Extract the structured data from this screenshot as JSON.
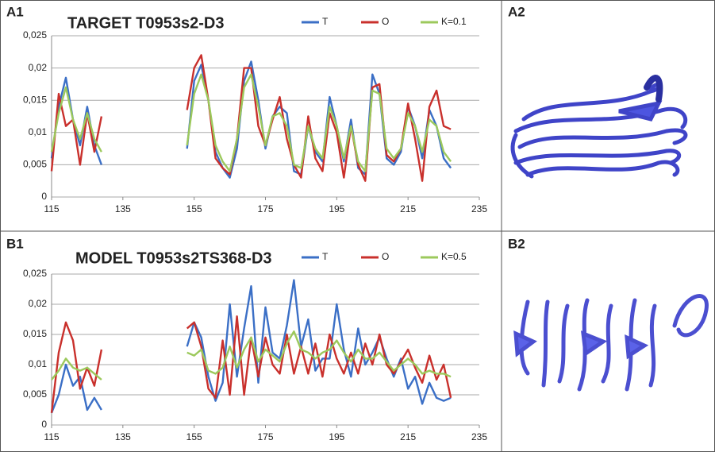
{
  "panels": [
    "A1",
    "A2",
    "B1",
    "B2"
  ],
  "chart_data": [
    {
      "type": "line",
      "title": "TARGET T0953s2-D3",
      "x": [
        115,
        117,
        119,
        121,
        123,
        125,
        127,
        129,
        140,
        153,
        155,
        157,
        159,
        161,
        163,
        165,
        167,
        169,
        171,
        173,
        175,
        177,
        179,
        181,
        183,
        185,
        187,
        189,
        191,
        193,
        195,
        197,
        199,
        201,
        203,
        205,
        207,
        209,
        211,
        213,
        215,
        217,
        219,
        221,
        223,
        225,
        227
      ],
      "series": [
        {
          "name": "T",
          "color": "#3b6fc6",
          "values": [
            0.006,
            0.014,
            0.0185,
            0.012,
            0.008,
            0.014,
            0.008,
            0.005,
            null,
            0.0075,
            0.018,
            0.0205,
            0.015,
            0.007,
            0.0045,
            0.003,
            0.0075,
            0.018,
            0.021,
            0.015,
            0.0075,
            0.0125,
            0.014,
            0.013,
            0.004,
            0.0035,
            0.011,
            0.007,
            0.0055,
            0.0155,
            0.011,
            0.0055,
            0.012,
            0.0045,
            0.0035,
            0.019,
            0.016,
            0.006,
            0.005,
            0.007,
            0.014,
            0.011,
            0.006,
            0.0135,
            0.011,
            0.006,
            0.0045
          ]
        },
        {
          "name": "O",
          "color": "#c9302c",
          "values": [
            0.004,
            0.016,
            0.011,
            0.012,
            0.005,
            0.013,
            0.007,
            0.0125,
            null,
            0.0135,
            0.02,
            0.022,
            0.015,
            0.006,
            0.0045,
            0.0035,
            0.009,
            0.02,
            0.02,
            0.011,
            0.008,
            0.012,
            0.0155,
            0.009,
            0.005,
            0.003,
            0.0125,
            0.006,
            0.004,
            0.013,
            0.01,
            0.003,
            0.011,
            0.005,
            0.0025,
            0.017,
            0.0175,
            0.0065,
            0.0055,
            0.0075,
            0.0145,
            0.009,
            0.0025,
            0.014,
            0.0165,
            0.011,
            0.0105
          ]
        },
        {
          "name": "K=0.1",
          "color": "#9cc95c",
          "values": [
            0.007,
            0.013,
            0.017,
            0.012,
            0.009,
            0.013,
            0.009,
            0.007,
            null,
            0.008,
            0.016,
            0.019,
            0.015,
            0.008,
            0.0055,
            0.004,
            0.009,
            0.017,
            0.019,
            0.014,
            0.008,
            0.0125,
            0.013,
            0.011,
            0.005,
            0.0045,
            0.011,
            0.0075,
            0.006,
            0.014,
            0.011,
            0.006,
            0.011,
            0.0055,
            0.004,
            0.0165,
            0.016,
            0.0075,
            0.006,
            0.0075,
            0.013,
            0.011,
            0.007,
            0.012,
            0.011,
            0.007,
            0.0055
          ]
        }
      ],
      "xlim": [
        115,
        235
      ],
      "xticks": [
        115,
        135,
        155,
        175,
        195,
        215,
        235
      ],
      "ylim": [
        0,
        0.025
      ],
      "yticks": [
        0,
        {
          "value": 0.005,
          "label": "0,005"
        },
        {
          "value": 0.01,
          "label": "0,01"
        },
        {
          "value": 0.015,
          "label": "0,015"
        },
        {
          "value": 0.02,
          "label": "0,02"
        },
        {
          "value": 0.025,
          "label": "0,025"
        }
      ],
      "grid": true
    },
    {
      "type": "line",
      "title": "MODEL T0953s2TS368-D3",
      "x": [
        115,
        117,
        119,
        121,
        123,
        125,
        127,
        129,
        140,
        153,
        155,
        157,
        159,
        161,
        163,
        165,
        167,
        169,
        171,
        173,
        175,
        177,
        179,
        181,
        183,
        185,
        187,
        189,
        191,
        193,
        195,
        197,
        199,
        201,
        203,
        205,
        207,
        209,
        211,
        213,
        215,
        217,
        219,
        221,
        223,
        225,
        227
      ],
      "series": [
        {
          "name": "T",
          "color": "#3b6fc6",
          "values": [
            0.002,
            0.005,
            0.01,
            0.0065,
            0.008,
            0.0025,
            0.0045,
            0.0025,
            null,
            0.013,
            0.017,
            0.0145,
            0.008,
            0.004,
            0.007,
            0.02,
            0.008,
            0.016,
            0.023,
            0.007,
            0.0195,
            0.012,
            0.011,
            0.0165,
            0.024,
            0.013,
            0.0175,
            0.009,
            0.011,
            0.011,
            0.02,
            0.0125,
            0.008,
            0.016,
            0.01,
            0.012,
            0.0145,
            0.011,
            0.008,
            0.011,
            0.006,
            0.008,
            0.0035,
            0.007,
            0.0045,
            0.004,
            0.0045
          ]
        },
        {
          "name": "O",
          "color": "#c9302c",
          "values": [
            0.002,
            0.012,
            0.017,
            0.014,
            0.006,
            0.0095,
            0.0065,
            0.0125,
            null,
            0.016,
            0.017,
            0.013,
            0.006,
            0.0045,
            0.014,
            0.005,
            0.018,
            0.005,
            0.0145,
            0.008,
            0.0145,
            0.01,
            0.0085,
            0.015,
            0.0085,
            0.013,
            0.0085,
            0.0135,
            0.008,
            0.015,
            0.011,
            0.0085,
            0.012,
            0.0085,
            0.0135,
            0.01,
            0.015,
            0.01,
            0.0085,
            0.0105,
            0.0125,
            0.0095,
            0.007,
            0.0115,
            0.0075,
            0.01,
            0.0045
          ]
        },
        {
          "name": "K=0.5",
          "color": "#9cc95c",
          "values": [
            0.0075,
            0.009,
            0.011,
            0.0095,
            0.009,
            0.0095,
            0.0085,
            0.0075,
            null,
            0.012,
            0.0115,
            0.0125,
            0.009,
            0.0085,
            0.0095,
            0.013,
            0.0095,
            0.0125,
            0.0145,
            0.0105,
            0.0125,
            0.0115,
            0.0105,
            0.0135,
            0.0155,
            0.0125,
            0.012,
            0.011,
            0.012,
            0.0125,
            0.014,
            0.012,
            0.0105,
            0.0125,
            0.011,
            0.011,
            0.012,
            0.0105,
            0.009,
            0.01,
            0.011,
            0.01,
            0.0085,
            0.009,
            0.0085,
            0.0085,
            0.008
          ]
        }
      ],
      "xlim": [
        115,
        235
      ],
      "xticks": [
        115,
        135,
        155,
        175,
        195,
        215,
        235
      ],
      "ylim": [
        0,
        0.025
      ],
      "yticks": [
        0,
        {
          "value": 0.005,
          "label": "0,005"
        },
        {
          "value": 0.01,
          "label": "0,01"
        },
        {
          "value": 0.015,
          "label": "0,015"
        },
        {
          "value": 0.02,
          "label": "0,02"
        },
        {
          "value": 0.025,
          "label": "0,025"
        }
      ],
      "grid": true
    }
  ]
}
